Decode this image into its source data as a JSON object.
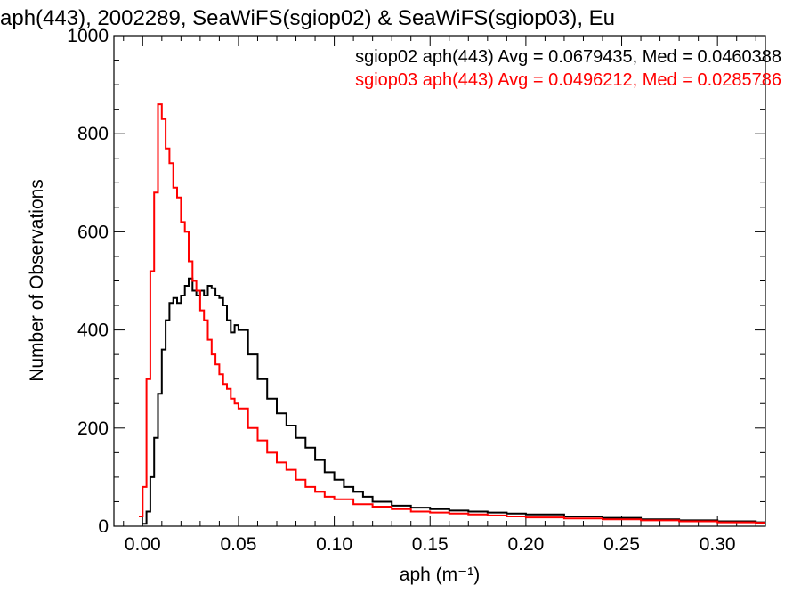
{
  "chart_data": {
    "type": "line",
    "title": "aph(443), 2002289, SeaWiFS(sgiop02) & SeaWiFS(sgiop03), Eu",
    "xlabel": "aph (m⁻¹)",
    "ylabel": "Number of Observations",
    "xlim": [
      -0.015,
      0.325
    ],
    "ylim": [
      0,
      1000
    ],
    "xticks": [
      0.0,
      0.05,
      0.1,
      0.15,
      0.2,
      0.25,
      0.3
    ],
    "xtick_labels": [
      "0.00",
      "0.05",
      "0.10",
      "0.15",
      "0.20",
      "0.25",
      "0.30"
    ],
    "yticks": [
      0,
      200,
      400,
      600,
      800,
      1000
    ],
    "ytick_labels": [
      "0",
      "200",
      "400",
      "600",
      "800",
      "1000"
    ],
    "grid": false,
    "legend_position": "top-right",
    "series": [
      {
        "name": "sgiop02",
        "color": "#000000",
        "legend_text": "sgiop02 aph(443) Avg = 0.0679435, Med = 0.0460388",
        "x": [
          0.0,
          0.002,
          0.004,
          0.006,
          0.008,
          0.01,
          0.012,
          0.014,
          0.016,
          0.018,
          0.02,
          0.022,
          0.024,
          0.026,
          0.028,
          0.03,
          0.032,
          0.034,
          0.036,
          0.038,
          0.04,
          0.042,
          0.044,
          0.046,
          0.048,
          0.05,
          0.055,
          0.06,
          0.065,
          0.07,
          0.075,
          0.08,
          0.085,
          0.09,
          0.095,
          0.1,
          0.105,
          0.11,
          0.115,
          0.12,
          0.13,
          0.14,
          0.15,
          0.16,
          0.17,
          0.18,
          0.19,
          0.2,
          0.22,
          0.24,
          0.26,
          0.28,
          0.3,
          0.32
        ],
        "y": [
          5,
          30,
          100,
          180,
          270,
          360,
          420,
          455,
          465,
          455,
          470,
          490,
          505,
          480,
          470,
          480,
          470,
          490,
          485,
          470,
          465,
          450,
          420,
          395,
          410,
          400,
          350,
          300,
          260,
          230,
          205,
          180,
          160,
          135,
          110,
          95,
          80,
          70,
          60,
          50,
          42,
          38,
          35,
          32,
          30,
          28,
          26,
          24,
          20,
          17,
          14,
          12,
          10,
          8
        ]
      },
      {
        "name": "sgiop03",
        "color": "#ff0000",
        "legend_text": "sgiop03 aph(443) Avg = 0.0496212, Med = 0.0285786",
        "x": [
          -0.002,
          0.0,
          0.002,
          0.004,
          0.006,
          0.008,
          0.01,
          0.012,
          0.014,
          0.016,
          0.018,
          0.02,
          0.022,
          0.024,
          0.026,
          0.028,
          0.03,
          0.032,
          0.034,
          0.036,
          0.038,
          0.04,
          0.042,
          0.044,
          0.046,
          0.048,
          0.05,
          0.055,
          0.06,
          0.065,
          0.07,
          0.075,
          0.08,
          0.085,
          0.09,
          0.095,
          0.1,
          0.11,
          0.12,
          0.13,
          0.14,
          0.15,
          0.16,
          0.17,
          0.18,
          0.19,
          0.2,
          0.22,
          0.24,
          0.26,
          0.28,
          0.3,
          0.32
        ],
        "y": [
          20,
          80,
          300,
          520,
          680,
          860,
          830,
          770,
          740,
          690,
          670,
          620,
          600,
          540,
          500,
          480,
          440,
          420,
          380,
          350,
          330,
          310,
          290,
          280,
          260,
          250,
          240,
          200,
          175,
          150,
          130,
          115,
          95,
          80,
          70,
          60,
          55,
          45,
          40,
          35,
          30,
          28,
          26,
          24,
          22,
          20,
          18,
          16,
          14,
          12,
          10,
          8,
          7
        ]
      }
    ]
  }
}
